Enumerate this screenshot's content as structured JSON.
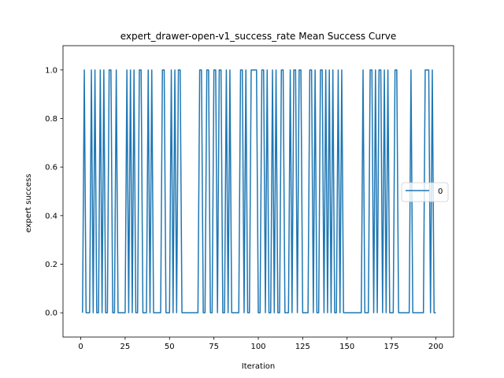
{
  "chart_data": {
    "type": "line",
    "title": "expert_drawer-open-v1_success_rate Mean Success Curve",
    "xlabel": "Iteration",
    "ylabel": "expert success",
    "xlim": [
      -10,
      210
    ],
    "ylim": [
      -0.1,
      1.1
    ],
    "xticks": [
      0,
      25,
      50,
      75,
      100,
      125,
      150,
      175,
      200
    ],
    "yticks": [
      0.0,
      0.2,
      0.4,
      0.6,
      0.8,
      1.0
    ],
    "xtick_labels": [
      "0",
      "25",
      "50",
      "75",
      "100",
      "125",
      "150",
      "175",
      "200"
    ],
    "ytick_labels": [
      "0.0",
      "0.2",
      "0.4",
      "0.6",
      "0.8",
      "1.0"
    ],
    "grid": false,
    "legend_position": "center-right",
    "series": [
      {
        "name": "0",
        "color": "#1f77b4",
        "x": [
          1,
          2,
          3,
          4,
          5,
          6,
          7,
          8,
          9,
          10,
          11,
          12,
          13,
          14,
          15,
          16,
          17,
          18,
          19,
          20,
          21,
          22,
          23,
          24,
          25,
          26,
          27,
          28,
          29,
          30,
          31,
          32,
          33,
          34,
          35,
          36,
          37,
          38,
          39,
          40,
          41,
          42,
          43,
          44,
          45,
          46,
          47,
          48,
          49,
          50,
          51,
          52,
          53,
          54,
          55,
          56,
          57,
          58,
          59,
          60,
          61,
          62,
          63,
          64,
          65,
          66,
          67,
          68,
          69,
          70,
          71,
          72,
          73,
          74,
          75,
          76,
          77,
          78,
          79,
          80,
          81,
          82,
          83,
          84,
          85,
          86,
          87,
          88,
          89,
          90,
          91,
          92,
          93,
          94,
          95,
          96,
          97,
          98,
          99,
          100,
          101,
          102,
          103,
          104,
          105,
          106,
          107,
          108,
          109,
          110,
          111,
          112,
          113,
          114,
          115,
          116,
          117,
          118,
          119,
          120,
          121,
          122,
          123,
          124,
          125,
          126,
          127,
          128,
          129,
          130,
          131,
          132,
          133,
          134,
          135,
          136,
          137,
          138,
          139,
          140,
          141,
          142,
          143,
          144,
          145,
          146,
          147,
          148,
          149,
          150,
          151,
          152,
          153,
          154,
          155,
          156,
          157,
          158,
          159,
          160,
          161,
          162,
          163,
          164,
          165,
          166,
          167,
          168,
          169,
          170,
          171,
          172,
          173,
          174,
          175,
          176,
          177,
          178,
          179,
          180,
          181,
          182,
          183,
          184,
          185,
          186,
          187,
          188,
          189,
          190,
          191,
          192,
          193,
          194,
          195,
          196,
          197,
          198,
          199,
          200
        ],
        "y": [
          0,
          1,
          0,
          0,
          0,
          1,
          0,
          1,
          0,
          0,
          1,
          0,
          1,
          0,
          0,
          1,
          1,
          0,
          0,
          1,
          0,
          0,
          0,
          0,
          0,
          1,
          0,
          1,
          0,
          1,
          0,
          0,
          1,
          1,
          0,
          0,
          0,
          1,
          0,
          1,
          0,
          0,
          0,
          0,
          0,
          1,
          1,
          0,
          0,
          0,
          1,
          0,
          1,
          0,
          1,
          1,
          0,
          0,
          0,
          0,
          0,
          0,
          0,
          0,
          0,
          0,
          1,
          1,
          0,
          0,
          1,
          1,
          0,
          0,
          1,
          1,
          0,
          1,
          1,
          0,
          0,
          1,
          0,
          1,
          0,
          0,
          0,
          0,
          0,
          1,
          1,
          0,
          1,
          0,
          0,
          1,
          1,
          1,
          1,
          0,
          0,
          1,
          1,
          0,
          1,
          0,
          0,
          1,
          0,
          1,
          0,
          0,
          1,
          1,
          0,
          0,
          0,
          1,
          0,
          1,
          1,
          0,
          1,
          1,
          0,
          0,
          0,
          0,
          1,
          1,
          0,
          1,
          0,
          0,
          1,
          1,
          0,
          1,
          0,
          1,
          0,
          1,
          0,
          0,
          1,
          0,
          1,
          0,
          0,
          0,
          0,
          0,
          0,
          0,
          0,
          0,
          0,
          0,
          1,
          0,
          0,
          0,
          1,
          1,
          0,
          1,
          0,
          1,
          1,
          0,
          1,
          0,
          1,
          0,
          0,
          0,
          1,
          1,
          0,
          0,
          0,
          0,
          0,
          0,
          0,
          1,
          0,
          0,
          0,
          0,
          0,
          0,
          0,
          1,
          1,
          1,
          0,
          1,
          0,
          0
        ]
      }
    ]
  }
}
